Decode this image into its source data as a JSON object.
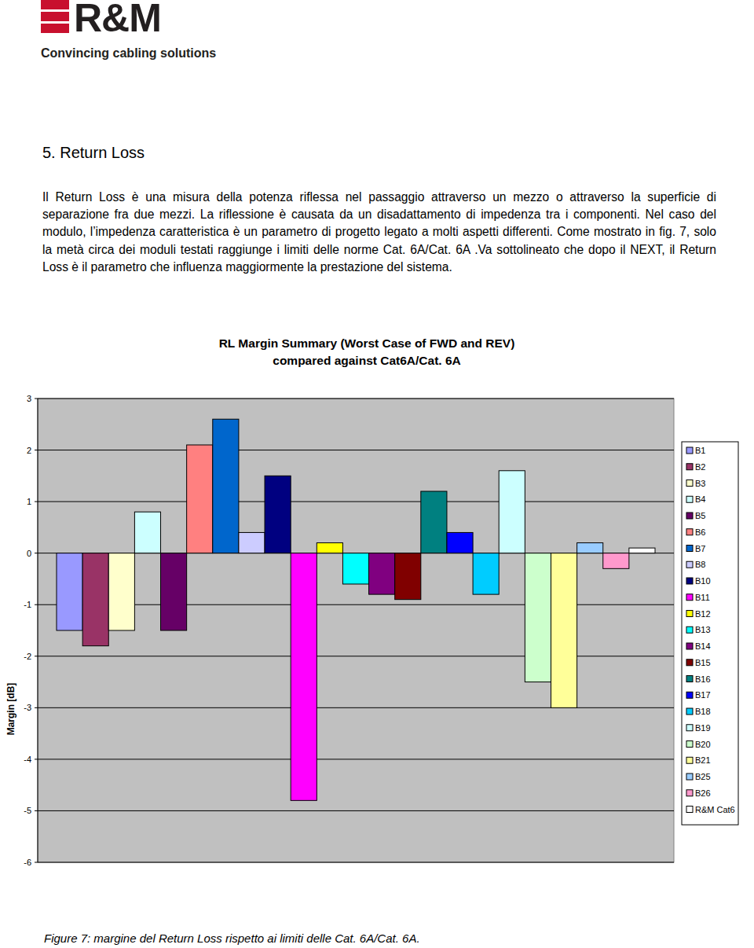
{
  "header": {
    "logo": "R&M",
    "tagline": "Convincing cabling solutions"
  },
  "section": {
    "title": "5. Return Loss",
    "paragraph": "Il Return Loss è una misura della potenza riflessa nel passaggio attraverso un mezzo o attraverso la superficie di separazione fra due mezzi. La riflessione è causata da un disadattamento di impedenza tra i componenti. Nel caso del modulo, l’impedenza caratteristica è un parametro di progetto legato a molti aspetti differenti. Come mostrato in fig. 7, solo la metà circa dei moduli testati raggiunge i limiti delle norme Cat. 6A/Cat. 6A .Va sottolineato che dopo il NEXT, il Return Loss è il parametro che influenza maggiormente la prestazione del sistema."
  },
  "chart_data": {
    "type": "bar",
    "title": "RL Margin Summary (Worst Case of FWD and REV)",
    "subtitle": "compared against Cat6A/Cat. 6A",
    "y_label": "Margin [dB]",
    "categories": [
      "B1",
      "B2",
      "B3",
      "B4",
      "B5",
      "B6",
      "B7",
      "B8",
      "B10",
      "B11",
      "B12",
      "B13",
      "B14",
      "B15",
      "B16",
      "B17",
      "B18",
      "B19",
      "B20",
      "B21",
      "B25",
      "B26",
      "R&M Cat6"
    ],
    "values": [
      -1.5,
      -1.8,
      -1.5,
      0.8,
      -1.5,
      2.1,
      2.6,
      0.4,
      1.5,
      -4.8,
      0.2,
      -0.6,
      -0.8,
      -0.9,
      1.2,
      0.4,
      -0.8,
      1.6,
      -2.5,
      -3.0,
      0.2,
      -0.3,
      0.1
    ],
    "colors": [
      "#9999ff",
      "#993366",
      "#ffffcc",
      "#ccffff",
      "#660066",
      "#ff8080",
      "#0066cc",
      "#ccccff",
      "#000080",
      "#ff00ff",
      "#ffff00",
      "#00ffff",
      "#800080",
      "#800000",
      "#008080",
      "#0000ff",
      "#00ccff",
      "#ccffff",
      "#ccffcc",
      "#ffff99",
      "#99ccff",
      "#ff99cc",
      "#ffffff"
    ],
    "ylim": [
      -6,
      3
    ],
    "yticks": [
      -6,
      -5,
      -4,
      -3,
      -2,
      -1,
      0,
      1,
      2,
      3
    ],
    "grid": true,
    "legend": "right",
    "tick_labels": "y"
  },
  "caption": "Figure 7: margine del Return Loss  rispetto ai limiti delle Cat. 6A/Cat. 6A."
}
